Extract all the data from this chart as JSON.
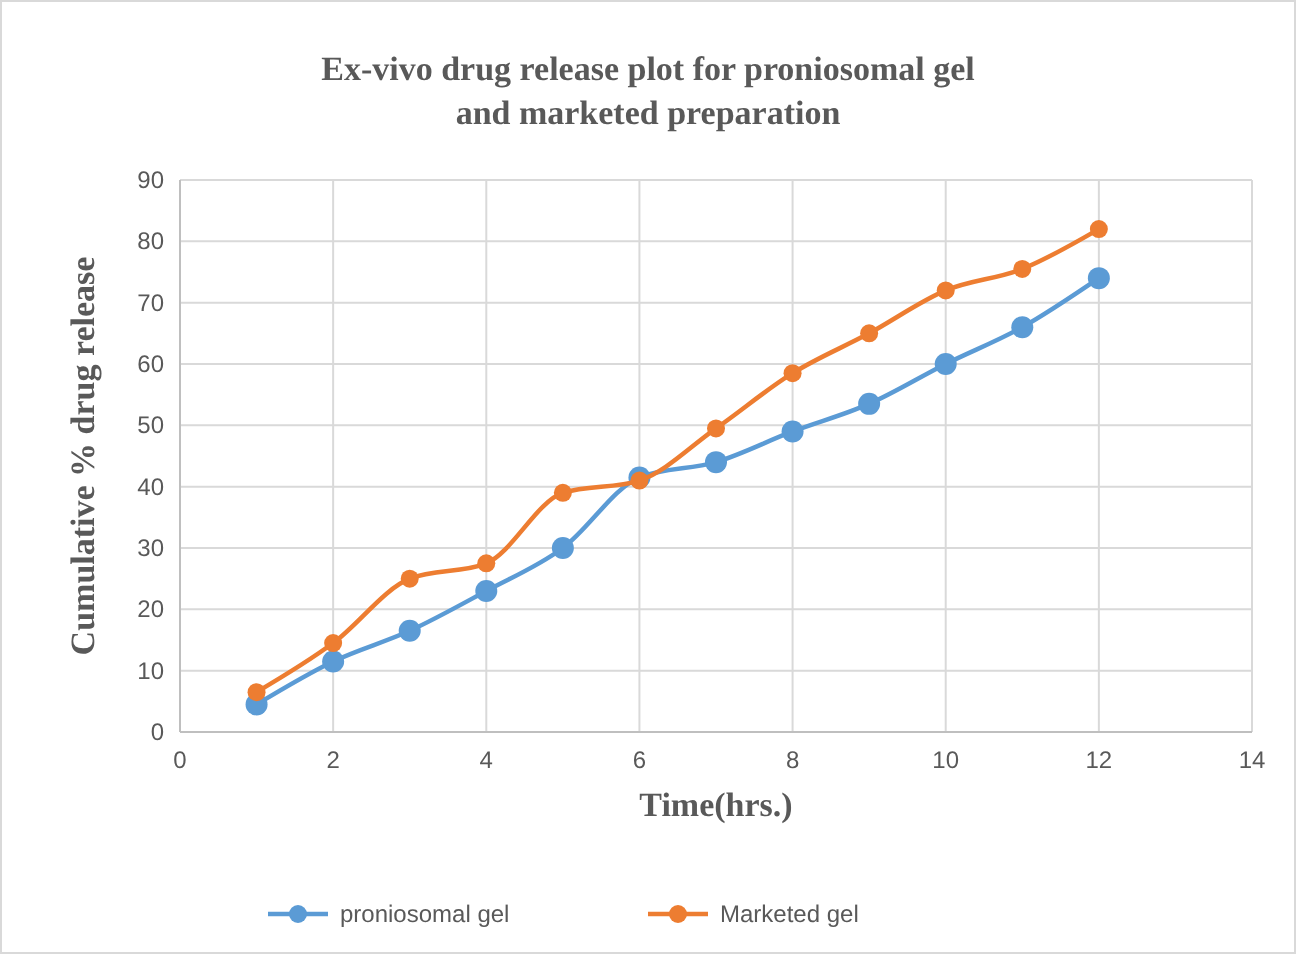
{
  "chart_data": {
    "type": "line",
    "title": "Ex-vivo drug release plot for proniosomal gel and marketed preparation",
    "xlabel": "Time(hrs.)",
    "ylabel": "Cumulative % drug release",
    "x": [
      1,
      2,
      3,
      4,
      5,
      6,
      7,
      8,
      9,
      10,
      11,
      12
    ],
    "series": [
      {
        "name": "proniosomal gel",
        "color": "#5b9bd5",
        "values": [
          4.5,
          11.5,
          16.5,
          23,
          30,
          41.5,
          44,
          49,
          53.5,
          60,
          66,
          74
        ]
      },
      {
        "name": "Marketed gel",
        "color": "#ed7d31",
        "values": [
          6.5,
          14.5,
          25,
          27.5,
          39,
          41,
          49.5,
          58.5,
          65,
          72,
          75.5,
          82
        ]
      }
    ],
    "xlim": [
      0,
      14
    ],
    "xticks": [
      0,
      2,
      4,
      6,
      8,
      10,
      12,
      14
    ],
    "ylim": [
      0,
      90
    ],
    "yticks": [
      0,
      10,
      20,
      30,
      40,
      50,
      60,
      70,
      80,
      90
    ],
    "grid": true,
    "legend": "bottom",
    "marker": "circle",
    "line_style": "solid"
  }
}
